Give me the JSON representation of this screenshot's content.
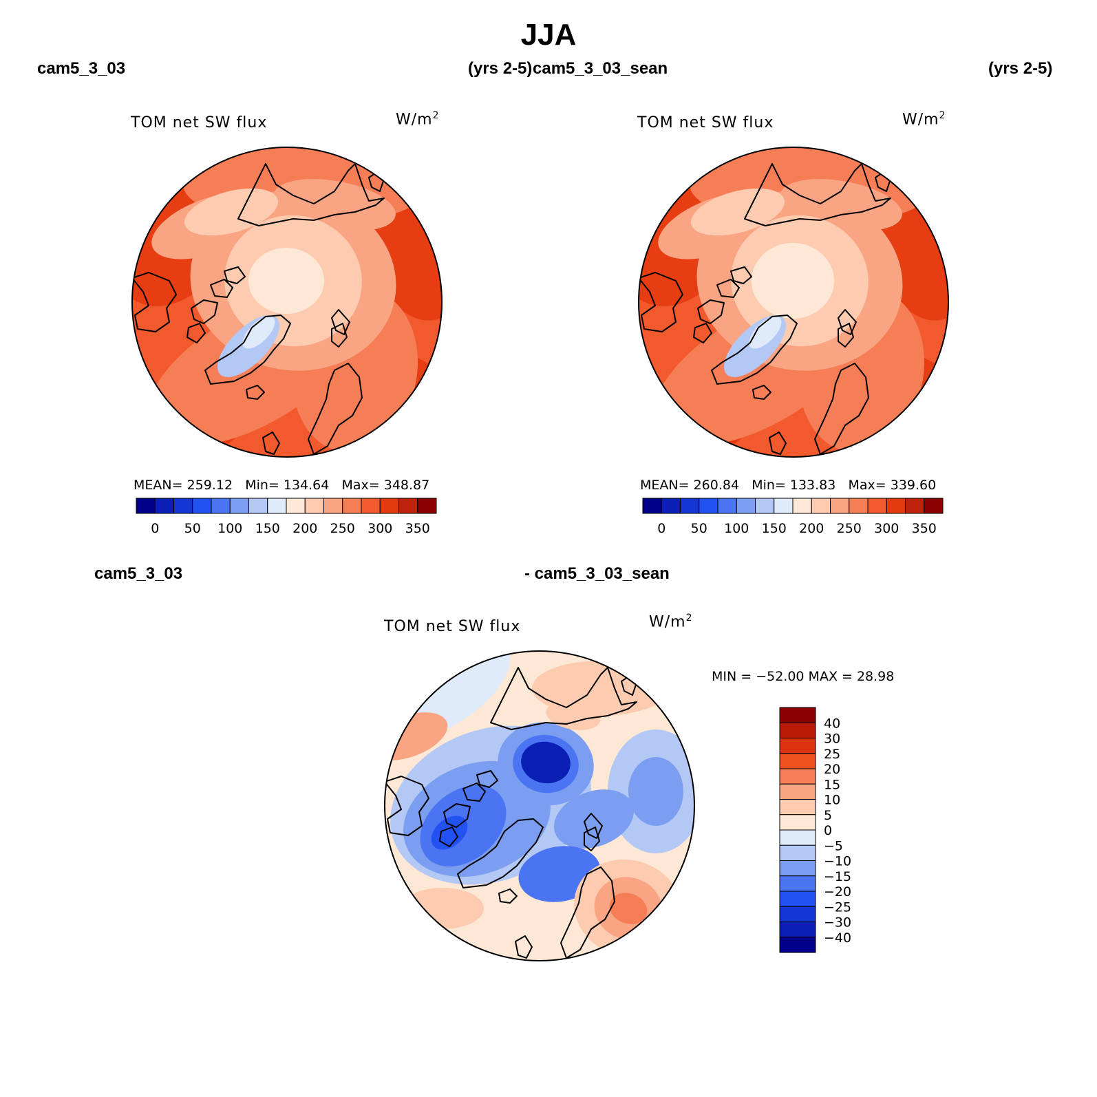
{
  "season": "JJA",
  "panels": [
    {
      "case": "cam5_3_03",
      "years": "(yrs 2-5)",
      "variable": "TOM net SW flux",
      "units_base": "W/m",
      "units_exp": "2",
      "stats": {
        "mean_label": "MEAN=",
        "mean": "259.12",
        "min_label": "Min=",
        "min": "134.64",
        "max_label": "Max=",
        "max": "348.87"
      }
    },
    {
      "case": "cam5_3_03_sean",
      "years": "(yrs 2-5)",
      "variable": "TOM net SW flux",
      "units_base": "W/m",
      "units_exp": "2",
      "stats": {
        "mean_label": "MEAN=",
        "mean": "260.84",
        "min_label": "Min=",
        "min": "133.83",
        "max_label": "Max=",
        "max": "339.60"
      }
    }
  ],
  "diff": {
    "case_a": "cam5_3_03",
    "case_b": "- cam5_3_03_sean",
    "variable": "TOM net SW flux",
    "units_base": "W/m",
    "units_exp": "2",
    "minmax": "MIN = −52.00 MAX =   28.98"
  },
  "abs_colorbar": {
    "colors": [
      "#00008b",
      "#0a1fb4",
      "#1436d6",
      "#2352f3",
      "#4b74f2",
      "#7c9ef0",
      "#b3c8f5",
      "#dfeafb",
      "#fde8d6",
      "#fccbb0",
      "#f9a584",
      "#f67e57",
      "#f25a2e",
      "#e33a10",
      "#c0230b",
      "#8b0000"
    ],
    "tick_labels": [
      "0",
      "50",
      "100",
      "150",
      "200",
      "250",
      "300",
      "350"
    ]
  },
  "diff_colorbar": {
    "colors": [
      "#8b0000",
      "#b81c06",
      "#de3310",
      "#f0521f",
      "#f67e57",
      "#f9a584",
      "#fccbb0",
      "#fde8d6",
      "#dfeafb",
      "#b3c8f5",
      "#7c9ef0",
      "#4b74f2",
      "#2352f3",
      "#1436d6",
      "#0a1fb4",
      "#00008b"
    ],
    "tick_labels": [
      "40",
      "30",
      "25",
      "20",
      "15",
      "10",
      "5",
      "0",
      "−5",
      "−10",
      "−15",
      "−20",
      "−25",
      "−30",
      "−40"
    ]
  },
  "map_colors": {
    "orange_dark": "#e63d12",
    "orange": "#f25a2e",
    "orange_mid": "#f67e57",
    "salmon": "#f9a584",
    "peach": "#fccbb0",
    "cream": "#fde8d6",
    "ice": "#dfeafb",
    "lightblue": "#b3c8f5",
    "blue": "#7c9ef0",
    "blue_mid": "#4b74f2",
    "blue_strong": "#2352f3",
    "navy": "#0a1fb4",
    "coast": "#000000"
  }
}
